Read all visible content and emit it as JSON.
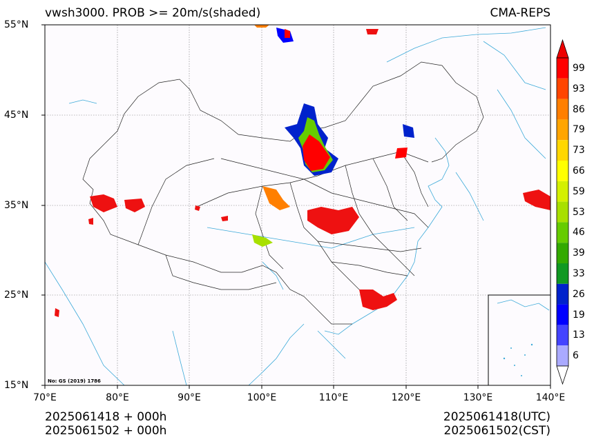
{
  "header": {
    "title_left": "vwsh3000. PROB >= 20m/s(shaded)",
    "title_right": "CMA-REPS"
  },
  "axes": {
    "lat_ticks": [
      "55°N",
      "45°N",
      "35°N",
      "25°N",
      "15°N"
    ],
    "lon_ticks": [
      "70°E",
      "80°E",
      "90°E",
      "100°E",
      "110°E",
      "120°E",
      "130°E",
      "140°E"
    ]
  },
  "map_note": "No: GS (2019) 1786",
  "footer": {
    "left_line1": "2025061418  +  000h",
    "left_line2": "2025061502  +  000h",
    "right_line1": "2025061418(UTC)",
    "right_line2": "2025061502(CST)"
  },
  "colorbar": {
    "labels": [
      "99",
      "93",
      "86",
      "79",
      "73",
      "66",
      "59",
      "53",
      "46",
      "39",
      "33",
      "26",
      "19",
      "13",
      "6"
    ],
    "colors": [
      "#ff0000",
      "#ff4500",
      "#ff7f00",
      "#ffa500",
      "#ffd700",
      "#ffff00",
      "#d4f000",
      "#a8e000",
      "#66cc00",
      "#33aa00",
      "#119922",
      "#0022cc",
      "#0000ff",
      "#4444ff",
      "#aaaaff"
    ],
    "top_arrow_color": "#ee0000",
    "bottom_arrow_color": "#ffffff"
  }
}
